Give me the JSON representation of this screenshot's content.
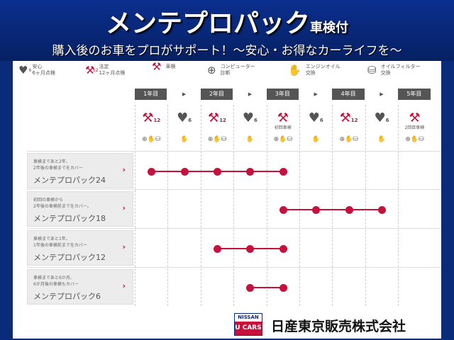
{
  "header": {
    "title": "メンテプロパック",
    "title_suffix": "車検付",
    "subtitle": "購入後のお車をプロがサポート！～安心・お得なカーライフを～"
  },
  "legend": [
    {
      "icon": "heart-icon",
      "badge": "6",
      "color": "#555555",
      "label": "安心\n6ヶ月点検"
    },
    {
      "icon": "wrench-icon",
      "badge": "12",
      "color": "#c8103c",
      "label": "法定\n12ヶ月点検"
    },
    {
      "icon": "wrench-icon",
      "badge": "",
      "color": "#c8103c",
      "label": "車検"
    },
    {
      "icon": "computer-diagnosis-icon",
      "badge": "",
      "color": "#555555",
      "label": "コンピューター\n診断"
    },
    {
      "icon": "engine-oil-icon",
      "badge": "",
      "color": "#555555",
      "label": "エンジンオイル\n交換"
    },
    {
      "icon": "oil-filter-icon",
      "badge": "",
      "color": "#555555",
      "label": "オイルフィルター\n交換"
    }
  ],
  "years": [
    "1年目",
    "2年目",
    "3年目",
    "4年目",
    "5年目"
  ],
  "columns": [
    {
      "type": "12",
      "caption": "",
      "services": "full"
    },
    {
      "type": "6",
      "caption": "",
      "services": "oil"
    },
    {
      "type": "12",
      "caption": "",
      "services": "full"
    },
    {
      "type": "6",
      "caption": "",
      "services": "oil"
    },
    {
      "type": "shaken",
      "caption": "初回車検",
      "services": "full"
    },
    {
      "type": "6",
      "caption": "",
      "services": "oil"
    },
    {
      "type": "12",
      "caption": "",
      "services": "full"
    },
    {
      "type": "6",
      "caption": "",
      "services": "oil"
    },
    {
      "type": "shaken",
      "caption": "2回目車検",
      "services": "full"
    }
  ],
  "plans": [
    {
      "desc": "車検まであと2年、\n2年後の車検までをカバー",
      "name": "メンテプロパック24",
      "from": 0,
      "to": 4
    },
    {
      "desc": "初回の車検から\n2年後の車検前までをカバー。",
      "name": "メンテプロパック18",
      "from": 4,
      "to": 7
    },
    {
      "desc": "車検まであと1年、\n1年後の車検前までをカバー",
      "name": "メンテプロパック12",
      "from": 2,
      "to": 4
    },
    {
      "desc": "車検まであと6か月、\n6か月後の車検もカバー",
      "name": "メンテプロパック6",
      "from": 3,
      "to": 4
    }
  ],
  "footer": {
    "logo_top": "NISSAN",
    "logo_bottom": "U CARS",
    "company": "日産東京販売株式会社"
  },
  "colors": {
    "accent": "#c8103c",
    "frame": "#0a2a7a"
  }
}
